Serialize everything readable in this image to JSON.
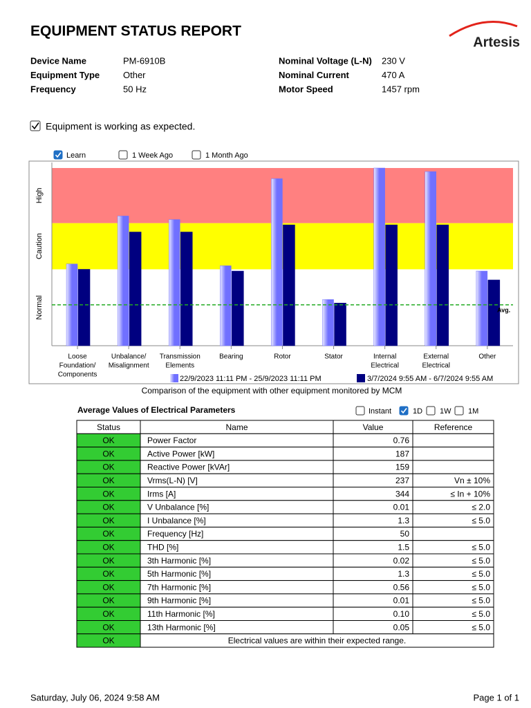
{
  "header": {
    "title": "EQUIPMENT STATUS REPORT",
    "logo": "Artesis"
  },
  "device_info": [
    {
      "label": "Device Name",
      "value": "PM-6910B"
    },
    {
      "label": "Equipment Type",
      "value": "Other"
    },
    {
      "label": "Frequency",
      "value": "50 Hz"
    },
    {
      "label": "Nominal Voltage (L-N)",
      "value": "230 V"
    },
    {
      "label": "Nominal Current",
      "value": "470 A"
    },
    {
      "label": "Motor Speed",
      "value": "1457 rpm"
    }
  ],
  "status_message": {
    "text": "Equipment is working as expected.",
    "checked": true
  },
  "chart_options": [
    {
      "label": "Learn",
      "checked": true
    },
    {
      "label": "1 Week Ago",
      "checked": false
    },
    {
      "label": "1 Month Ago",
      "checked": false
    }
  ],
  "chart_data": {
    "type": "bar",
    "caption": "Comparison of the equipment with other equipment monitored by MCM",
    "categories": [
      [
        "Loose",
        "Foundation/",
        "Components"
      ],
      [
        "Unbalance/",
        "Misalignment"
      ],
      [
        "Transmission",
        "Elements"
      ],
      [
        "Bearing"
      ],
      [
        "Rotor"
      ],
      [
        "Stator"
      ],
      [
        "Internal",
        "Electrical"
      ],
      [
        "External",
        "Electrical"
      ],
      [
        "Other"
      ]
    ],
    "zones": [
      {
        "label": "Normal",
        "from": 0,
        "to": 43,
        "color": "#ffffff"
      },
      {
        "label": "Caution",
        "from": 43,
        "to": 69,
        "color": "#ffff00"
      },
      {
        "label": "High",
        "from": 69,
        "to": 100,
        "color": "#ff8080"
      }
    ],
    "average": {
      "label": "Avg.",
      "value": 23,
      "color": "#22aa22"
    },
    "series": [
      {
        "name": "22/9/2023 11:11 PM - 25/9/2023 11:11 PM",
        "color": "#7070ff",
        "values": [
          46,
          73,
          71,
          45,
          94,
          26,
          100,
          98,
          42
        ]
      },
      {
        "name": "3/7/2024 9:55 AM - 6/7/2024 9:55 AM",
        "color": "#000080",
        "values": [
          43,
          64,
          64,
          42,
          68,
          24,
          68,
          68,
          37
        ]
      }
    ],
    "ylim": [
      0,
      100
    ]
  },
  "table": {
    "title": "Average Values of Electrical Parameters",
    "options": [
      {
        "label": "Instant",
        "checked": false
      },
      {
        "label": "1D",
        "checked": true
      },
      {
        "label": "1W",
        "checked": false
      },
      {
        "label": "1M",
        "checked": false
      }
    ],
    "columns": [
      "Status",
      "Name",
      "Value",
      "Reference"
    ],
    "rows": [
      [
        "OK",
        "Power Factor",
        "0.76",
        null
      ],
      [
        "OK",
        "Active Power [kW]",
        "187",
        null
      ],
      [
        "OK",
        "Reactive Power [kVAr]",
        "159",
        null
      ],
      [
        "OK",
        "Vrms(L-N) [V]",
        "237",
        "Vn ± 10%"
      ],
      [
        "OK",
        "Irms [A]",
        "344",
        "≤ In + 10%"
      ],
      [
        "OK",
        "V Unbalance [%]",
        "0.01",
        "≤ 2.0"
      ],
      [
        "OK",
        "I Unbalance [%]",
        "1.3",
        "≤ 5.0"
      ],
      [
        "OK",
        "Frequency [Hz]",
        "50",
        null
      ],
      [
        "OK",
        "THD [%]",
        "1.5",
        "≤ 5.0"
      ],
      [
        "OK",
        "3th Harmonic [%]",
        "0.02",
        "≤ 5.0"
      ],
      [
        "OK",
        "5th Harmonic [%]",
        "1.3",
        "≤ 5.0"
      ],
      [
        "OK",
        "7th Harmonic [%]",
        "0.56",
        "≤ 5.0"
      ],
      [
        "OK",
        "9th Harmonic [%]",
        "0.01",
        "≤ 5.0"
      ],
      [
        "OK",
        "11th Harmonic [%]",
        "0.10",
        "≤ 5.0"
      ],
      [
        "OK",
        "13th Harmonic [%]",
        "0.05",
        "≤ 5.0"
      ],
      [
        "OK",
        "Electrical values are within their expected range."
      ]
    ]
  },
  "footer": {
    "date": "Saturday, July 06, 2024 9:58 AM",
    "page": "Page 1 of 1"
  }
}
